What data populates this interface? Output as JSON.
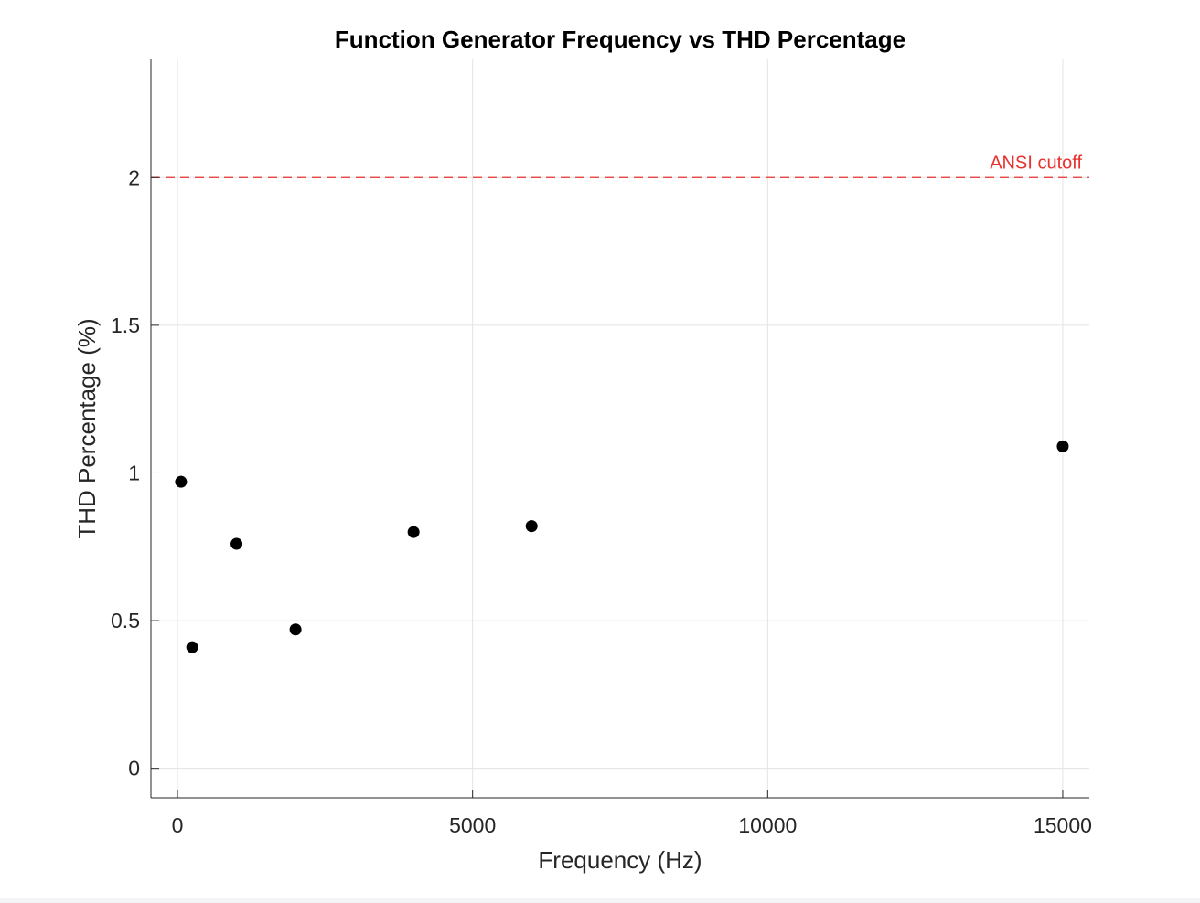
{
  "chart_data": {
    "type": "scatter",
    "title": "Function Generator Frequency vs THD Percentage",
    "xlabel": "Frequency (Hz)",
    "ylabel": "THD Percentage (%)",
    "xlim": [
      -450,
      15450
    ],
    "ylim": [
      -0.1,
      2.4
    ],
    "xticks": [
      0,
      5000,
      10000,
      15000
    ],
    "xtick_labels": [
      "0",
      "5000",
      "10000",
      "15000"
    ],
    "yticks": [
      0,
      0.5,
      1,
      1.5,
      2
    ],
    "ytick_labels": [
      "0",
      "0.5",
      "1",
      "1.5",
      "2"
    ],
    "grid": true,
    "series": [
      {
        "color": "#000000",
        "points": [
          {
            "x": 60,
            "y": 0.97
          },
          {
            "x": 250,
            "y": 0.41
          },
          {
            "x": 1000,
            "y": 0.76
          },
          {
            "x": 2000,
            "y": 0.47
          },
          {
            "x": 4000,
            "y": 0.8
          },
          {
            "x": 6000,
            "y": 0.82
          },
          {
            "x": 15000,
            "y": 1.09
          }
        ]
      }
    ],
    "reference_line": {
      "y": 2,
      "label": "ANSI cutoff",
      "color": "#e8322f",
      "style": "dashed"
    }
  }
}
